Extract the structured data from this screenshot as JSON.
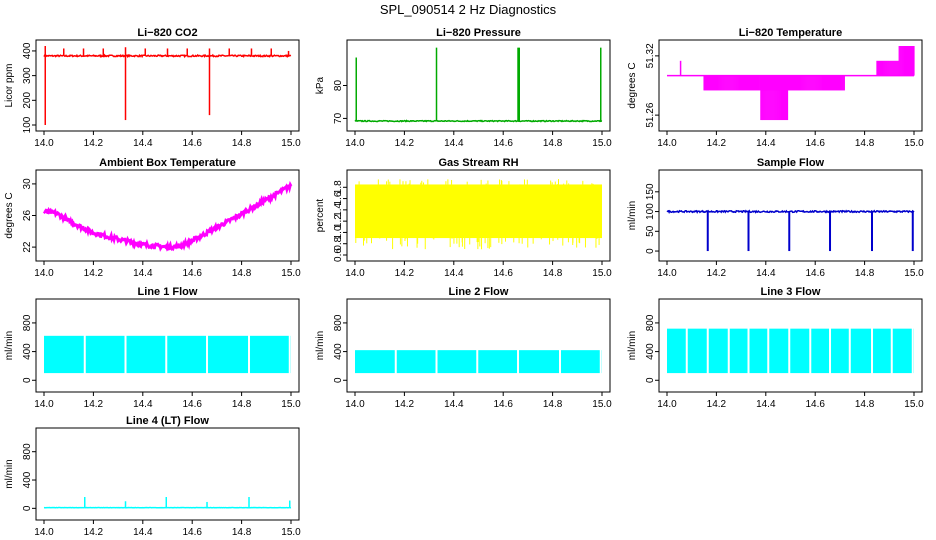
{
  "figure": {
    "title": "SPL_090514  2 Hz Diagnostics"
  },
  "chart_data": [
    {
      "type": "line",
      "title": "Li−820 CO2",
      "xlabel": "",
      "ylabel": "Licor ppm",
      "xlim": [
        14.0,
        15.0
      ],
      "ylim": [
        100,
        420
      ],
      "x_ticks": [
        "14.0",
        "14.2",
        "14.4",
        "14.6",
        "14.8",
        "15.0"
      ],
      "y_ticks": [
        "100",
        "200",
        "300",
        "400"
      ],
      "color": "#ff0000",
      "series": [
        {
          "baseline": 380,
          "noise": 6,
          "spikes": [
            {
              "x": 14.005,
              "y": 100
            },
            {
              "x": 14.005,
              "y": 420
            },
            {
              "x": 14.08,
              "y": 410
            },
            {
              "x": 14.16,
              "y": 410
            },
            {
              "x": 14.24,
              "y": 410
            },
            {
              "x": 14.33,
              "y": 120
            },
            {
              "x": 14.33,
              "y": 415
            },
            {
              "x": 14.41,
              "y": 410
            },
            {
              "x": 14.5,
              "y": 410
            },
            {
              "x": 14.58,
              "y": 410
            },
            {
              "x": 14.67,
              "y": 140
            },
            {
              "x": 14.67,
              "y": 410
            },
            {
              "x": 14.75,
              "y": 410
            },
            {
              "x": 14.84,
              "y": 410
            },
            {
              "x": 14.92,
              "y": 410
            },
            {
              "x": 14.99,
              "y": 400
            }
          ]
        }
      ]
    },
    {
      "type": "line",
      "title": "Li−820 Pressure",
      "xlabel": "",
      "ylabel": "kPa",
      "xlim": [
        14.0,
        15.0
      ],
      "ylim": [
        68,
        92
      ],
      "x_ticks": [
        "14.0",
        "14.2",
        "14.4",
        "14.6",
        "14.8",
        "15.0"
      ],
      "y_ticks": [
        "70",
        "80"
      ],
      "color": "#00aa00",
      "series": [
        {
          "baseline": 69.2,
          "noise": 0.3,
          "spikes": [
            {
              "x": 14.005,
              "y": 88.5
            },
            {
              "x": 14.33,
              "y": 91.5
            },
            {
              "x": 14.66,
              "y": 91.5
            },
            {
              "x": 14.665,
              "y": 91.5
            },
            {
              "x": 14.995,
              "y": 91.5
            }
          ]
        }
      ]
    },
    {
      "type": "line",
      "title": "Li−820 Temperature",
      "xlabel": "",
      "ylabel": "degrees C",
      "xlim": [
        14.0,
        15.0
      ],
      "ylim": [
        51.25,
        51.33
      ],
      "x_ticks": [
        "14.0",
        "14.2",
        "14.4",
        "14.6",
        "14.8",
        "15.0"
      ],
      "y_ticks": [
        "51.26",
        "51.32"
      ],
      "color": "#ff00ff",
      "series": [
        {
          "level": 51.3,
          "bands": [
            {
              "from": 14.15,
              "to": 14.72,
              "low": 51.285,
              "high": 51.3
            },
            {
              "from": 14.38,
              "to": 14.49,
              "low": 51.255,
              "high": 51.3
            },
            {
              "from": 14.85,
              "to": 14.94,
              "low": 51.3,
              "high": 51.315
            },
            {
              "from": 14.94,
              "to": 15.0,
              "low": 51.3,
              "high": 51.33
            }
          ]
        }
      ]
    },
    {
      "type": "line",
      "title": "Ambient Box Temperature",
      "xlabel": "",
      "ylabel": "degrees C",
      "xlim": [
        14.0,
        15.0
      ],
      "ylim": [
        21,
        31
      ],
      "x_ticks": [
        "14.0",
        "14.2",
        "14.4",
        "14.6",
        "14.8",
        "15.0"
      ],
      "y_ticks": [
        "22",
        "26",
        "30"
      ],
      "color": "#ff00ff",
      "series": [
        {
          "x": [
            14.0,
            14.05,
            14.1,
            14.2,
            14.3,
            14.4,
            14.5,
            14.55,
            14.6,
            14.7,
            14.8,
            14.9,
            15.0
          ],
          "y": [
            26.5,
            26.3,
            25.3,
            23.8,
            23.0,
            22.3,
            22.0,
            22.1,
            22.8,
            24.5,
            26.2,
            28.0,
            29.8
          ],
          "noise": 0.5
        }
      ]
    },
    {
      "type": "line",
      "title": "Gas Stream RH",
      "xlabel": "",
      "ylabel": "percent",
      "xlim": [
        14.0,
        15.0
      ],
      "ylim": [
        0.6,
        2.0
      ],
      "x_ticks": [
        "14.0",
        "14.2",
        "14.4",
        "14.6",
        "14.8",
        "15.0"
      ],
      "y_ticks": [
        "0.6",
        "0.8",
        "1.0",
        "1.2",
        "1.4",
        "1.6",
        "1.8"
      ],
      "color": "#ffff00",
      "series": [
        {
          "band_low": 0.9,
          "band_high": 1.85,
          "dips_to": 0.7
        }
      ]
    },
    {
      "type": "line",
      "title": "Sample Flow",
      "xlabel": "",
      "ylabel": "ml/min",
      "xlim": [
        14.0,
        15.0
      ],
      "ylim": [
        -10,
        190
      ],
      "x_ticks": [
        "14.0",
        "14.2",
        "14.4",
        "14.6",
        "14.8",
        "15.0"
      ],
      "y_ticks": [
        "0",
        "50",
        "100",
        "150"
      ],
      "color": "#0000cc",
      "series": [
        {
          "baseline": 100,
          "noise": 4,
          "dips": [
            14.165,
            14.33,
            14.495,
            14.66,
            14.83,
            14.995
          ],
          "dip_to": 0
        }
      ]
    },
    {
      "type": "line",
      "title": "Line 1 Flow",
      "xlabel": "",
      "ylabel": "ml/min",
      "xlim": [
        14.0,
        15.0
      ],
      "ylim": [
        -80,
        1050
      ],
      "x_ticks": [
        "14.0",
        "14.2",
        "14.4",
        "14.6",
        "14.8",
        "15.0"
      ],
      "y_ticks": [
        "0",
        "400",
        "800"
      ],
      "color": "#00ffff",
      "series": [
        {
          "band_low": 100,
          "band_high": 620,
          "gaps": [
            14.165,
            14.33,
            14.495,
            14.66,
            14.83,
            14.995
          ]
        }
      ]
    },
    {
      "type": "line",
      "title": "Line 2 Flow",
      "xlabel": "",
      "ylabel": "ml/min",
      "xlim": [
        14.0,
        15.0
      ],
      "ylim": [
        -80,
        1050
      ],
      "x_ticks": [
        "14.0",
        "14.2",
        "14.4",
        "14.6",
        "14.8",
        "15.0"
      ],
      "y_ticks": [
        "0",
        "400",
        "800"
      ],
      "color": "#00ffff",
      "series": [
        {
          "band_low": 100,
          "band_high": 420,
          "gaps": [
            14.165,
            14.33,
            14.495,
            14.66,
            14.83,
            14.995
          ]
        }
      ]
    },
    {
      "type": "line",
      "title": "Line 3 Flow",
      "xlabel": "",
      "ylabel": "ml/min",
      "xlim": [
        14.0,
        15.0
      ],
      "ylim": [
        -80,
        1050
      ],
      "x_ticks": [
        "14.0",
        "14.2",
        "14.4",
        "14.6",
        "14.8",
        "15.0"
      ],
      "y_ticks": [
        "0",
        "400",
        "800"
      ],
      "color": "#00ffff",
      "series": [
        {
          "band_low": 100,
          "band_high": 720,
          "gaps": [
            14.08,
            14.165,
            14.25,
            14.33,
            14.41,
            14.495,
            14.58,
            14.66,
            14.74,
            14.83,
            14.91,
            14.995
          ]
        }
      ]
    },
    {
      "type": "line",
      "title": "Line 4 (LT) Flow",
      "xlabel": "",
      "ylabel": "ml/min",
      "xlim": [
        14.0,
        15.0
      ],
      "ylim": [
        -80,
        1050
      ],
      "x_ticks": [
        "14.0",
        "14.2",
        "14.4",
        "14.6",
        "14.8",
        "15.0"
      ],
      "y_ticks": [
        "0",
        "400",
        "800"
      ],
      "color": "#00ffff",
      "series": [
        {
          "baseline": 10,
          "noise": 3,
          "spikes": [
            {
              "x": 14.165,
              "y": 160
            },
            {
              "x": 14.33,
              "y": 100
            },
            {
              "x": 14.495,
              "y": 160
            },
            {
              "x": 14.66,
              "y": 90
            },
            {
              "x": 14.83,
              "y": 160
            },
            {
              "x": 14.995,
              "y": 110
            }
          ]
        }
      ]
    }
  ]
}
